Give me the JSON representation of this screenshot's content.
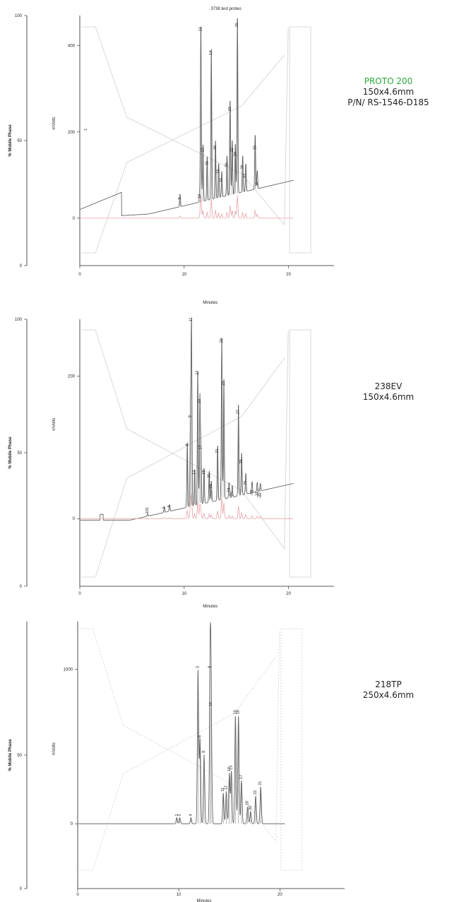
{
  "colors": {
    "trace": "#555555",
    "gradient": "#d9d9d9",
    "baseline": "#333333",
    "pink": "#e7a3a8",
    "axis": "#222222",
    "accent": "#2eaa3a"
  },
  "chart_data": [
    {
      "type": "line",
      "title": "3738  test proteo",
      "column": {
        "name": "PROTO 200",
        "dimensions": "150x4.6mm",
        "part_number": "P/N/ RS-1546-D185"
      },
      "xlabel": "Minutes",
      "ylabel_left": "% Mobile Phase",
      "ylabel_right": "mVolts",
      "xlim": [
        0,
        23
      ],
      "ylim_phase": [
        0,
        100
      ],
      "ylim_mv": [
        -110,
        470
      ],
      "x_ticks": [
        0,
        10,
        20
      ],
      "phase_ticks": [
        0,
        50,
        100
      ],
      "mv_ticks": [
        0,
        200,
        400
      ],
      "peaks": [
        {
          "label": "1",
          "x": 0.6,
          "y": 200
        },
        {
          "label": "9",
          "x": 9.6,
          "y": 40
        },
        {
          "label": "10",
          "x": 11.5,
          "y": 42
        },
        {
          "label": "13",
          "x": 11.6,
          "y": 430
        },
        {
          "label": "12",
          "x": 11.8,
          "y": 150
        },
        {
          "label": "11",
          "x": 12.2,
          "y": 120
        },
        {
          "label": "14",
          "x": 12.6,
          "y": 375
        },
        {
          "label": "18",
          "x": 13.0,
          "y": 155
        },
        {
          "label": "16",
          "x": 13.3,
          "y": 100
        },
        {
          "label": "15",
          "x": 13.6,
          "y": 80
        },
        {
          "label": "20",
          "x": 14.1,
          "y": 115
        },
        {
          "label": "23",
          "x": 14.4,
          "y": 245
        },
        {
          "label": "22",
          "x": 14.6,
          "y": 150
        },
        {
          "label": "24",
          "x": 14.9,
          "y": 140
        },
        {
          "label": "25",
          "x": 15.1,
          "y": 440
        },
        {
          "label": "26",
          "x": 15.6,
          "y": 110
        },
        {
          "label": "27",
          "x": 15.9,
          "y": 90
        },
        {
          "label": "33",
          "x": 16.8,
          "y": 155
        },
        {
          "label": "34",
          "x": 17.0,
          "y": 70
        }
      ]
    },
    {
      "type": "line",
      "title": "",
      "column": {
        "name": "238EV",
        "dimensions": "150x4.6mm"
      },
      "xlabel": "Minutes",
      "ylabel_left": "% Mobile Phase",
      "ylabel_right": "mVolts",
      "xlim": [
        0,
        23
      ],
      "ylim_phase": [
        0,
        100
      ],
      "ylim_mv": [
        -95,
        280
      ],
      "x_ticks": [
        0,
        10,
        20
      ],
      "phase_ticks": [
        0,
        50,
        100
      ],
      "mv_ticks": [
        0,
        200
      ],
      "peaks": [
        {
          "label": "101",
          "x": 6.5,
          "y": 5
        },
        {
          "label": "5",
          "x": 8.1,
          "y": 12
        },
        {
          "label": "6",
          "x": 8.6,
          "y": 14
        },
        {
          "label": "8",
          "x": 10.3,
          "y": 100
        },
        {
          "label": "9",
          "x": 10.6,
          "y": 140
        },
        {
          "label": "11",
          "x": 10.7,
          "y": 275
        },
        {
          "label": "13",
          "x": 11.0,
          "y": 60
        },
        {
          "label": "12",
          "x": 11.3,
          "y": 200
        },
        {
          "label": "10",
          "x": 11.5,
          "y": 160
        },
        {
          "label": "17",
          "x": 11.6,
          "y": 95
        },
        {
          "label": "18",
          "x": 11.9,
          "y": 60
        },
        {
          "label": "20",
          "x": 12.4,
          "y": 55
        },
        {
          "label": "19",
          "x": 12.6,
          "y": 40
        },
        {
          "label": "21",
          "x": 13.2,
          "y": 90
        },
        {
          "label": "22",
          "x": 13.6,
          "y": 245
        },
        {
          "label": "23",
          "x": 13.8,
          "y": 185
        },
        {
          "label": "24",
          "x": 14.3,
          "y": 35
        },
        {
          "label": "25",
          "x": 14.6,
          "y": 30
        },
        {
          "label": "27",
          "x": 15.2,
          "y": 145
        },
        {
          "label": "28",
          "x": 15.5,
          "y": 75
        },
        {
          "label": "29",
          "x": 15.9,
          "y": 45
        },
        {
          "label": "30",
          "x": 16.5,
          "y": 32
        },
        {
          "label": "31",
          "x": 17.0,
          "y": 30
        },
        {
          "label": "32",
          "x": 17.3,
          "y": 28
        }
      ]
    },
    {
      "type": "line",
      "title": "",
      "column": {
        "name": "218TP",
        "dimensions": "250x4.6mm"
      },
      "xlabel": "Minutes",
      "ylabel_left": "% Mobile Phase",
      "ylabel_right": "mVolts",
      "xlim": [
        0,
        25
      ],
      "ylim_phase": [
        0,
        100
      ],
      "ylim_mv": [
        -420,
        1310
      ],
      "x_ticks": [
        0,
        10,
        20
      ],
      "phase_ticks": [
        0,
        50
      ],
      "mv_ticks": [
        0,
        1000
      ],
      "peaks": [
        {
          "label": "1",
          "x": 9.8,
          "y": 40
        },
        {
          "label": "2",
          "x": 10.1,
          "y": 40
        },
        {
          "label": "4",
          "x": 11.2,
          "y": 40
        },
        {
          "label": "5",
          "x": 11.9,
          "y": 1000
        },
        {
          "label": "6",
          "x": 12.1,
          "y": 550
        },
        {
          "label": "8",
          "x": 12.5,
          "y": 450
        },
        {
          "label": "9",
          "x": 13.1,
          "y": 1000
        },
        {
          "label": "10",
          "x": 13.2,
          "y": 750
        },
        {
          "label": "11",
          "x": 14.4,
          "y": 200
        },
        {
          "label": "12",
          "x": 14.7,
          "y": 210
        },
        {
          "label": "14",
          "x": 15.0,
          "y": 330
        },
        {
          "label": "13",
          "x": 15.2,
          "y": 340
        },
        {
          "label": "15",
          "x": 15.6,
          "y": 700
        },
        {
          "label": "16",
          "x": 15.9,
          "y": 700
        },
        {
          "label": "17",
          "x": 16.2,
          "y": 280
        },
        {
          "label": "18",
          "x": 16.8,
          "y": 110
        },
        {
          "label": "20",
          "x": 17.1,
          "y": 80
        },
        {
          "label": "22",
          "x": 17.6,
          "y": 180
        },
        {
          "label": "21",
          "x": 18.1,
          "y": 240
        }
      ]
    }
  ]
}
